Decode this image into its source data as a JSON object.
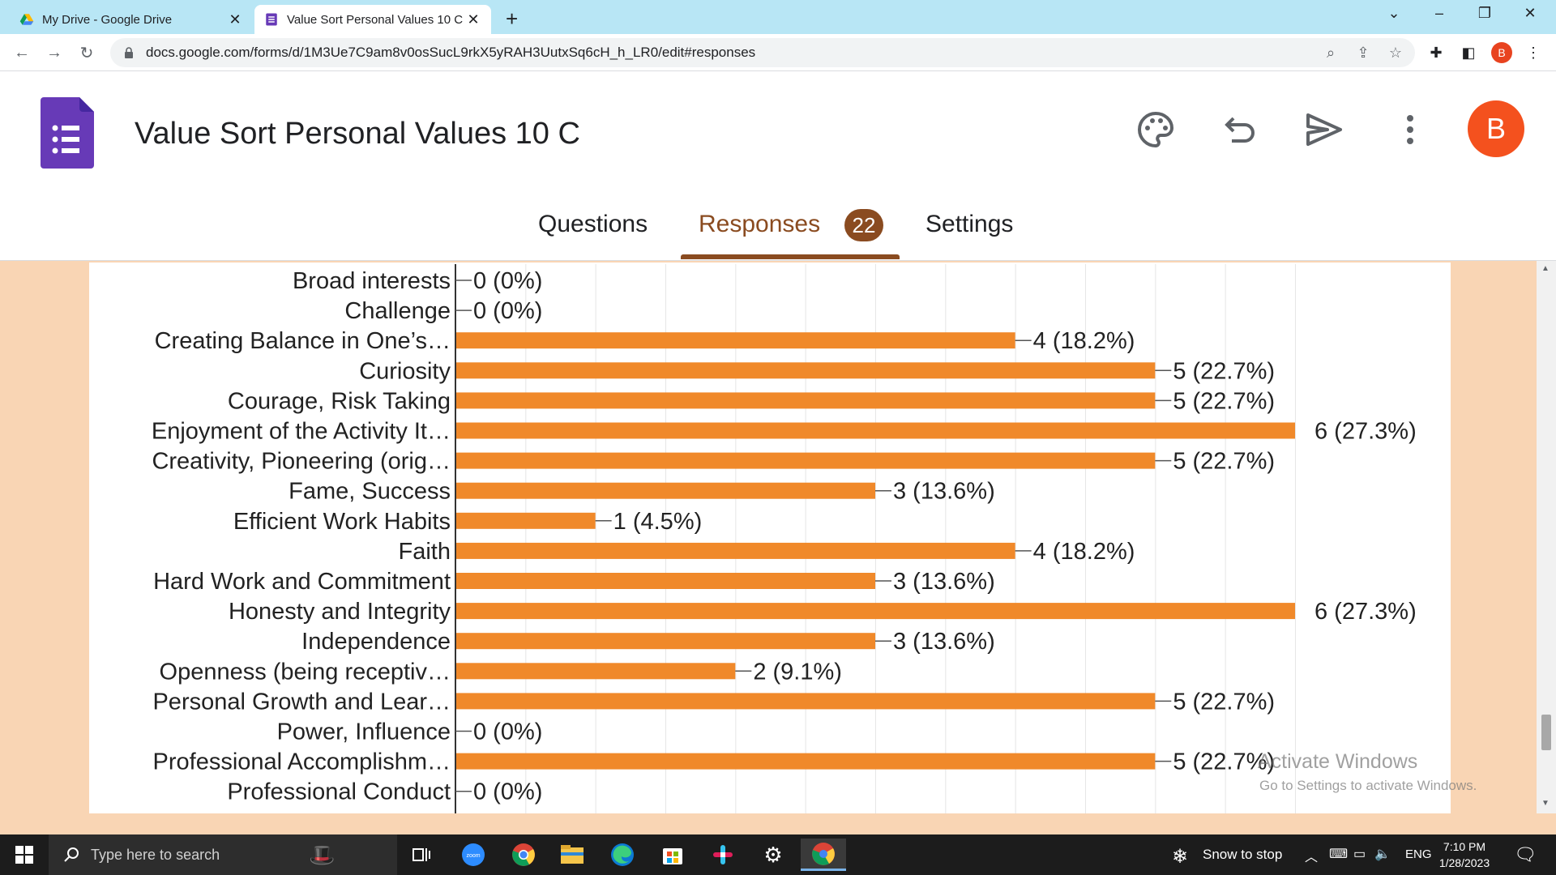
{
  "browser": {
    "tabs": [
      {
        "title": "My Drive - Google Drive",
        "active": false
      },
      {
        "title": "Value Sort Personal Values 10 C - ",
        "active": true
      }
    ],
    "url": "docs.google.com/forms/d/1M3Ue7C9am8v0osSucL9rkX5yRAH3UutxSq6cH_h_LR0/edit#responses",
    "profile_initial": "B"
  },
  "form": {
    "title": "Value Sort Personal Values 10 C",
    "avatar_initial": "B",
    "tabs": {
      "questions": "Questions",
      "responses": "Responses",
      "responses_count": "22",
      "settings": "Settings"
    }
  },
  "chart_data": {
    "type": "bar",
    "orientation": "horizontal",
    "bar_color": "#f0892a",
    "xlim": [
      0,
      6
    ],
    "categories": [
      "Broad interests",
      "Challenge",
      "Creating Balance in One’s…",
      "Curiosity",
      "Courage, Risk Taking",
      "Enjoyment of the Activity It…",
      "Creativity, Pioneering (orig…",
      "Fame, Success",
      "Efficient Work Habits",
      "Faith",
      "Hard Work and Commitment",
      "Honesty and Integrity",
      "Independence",
      "Openness (being receptiv…",
      "Personal Growth and Lear…",
      "Power, Influence",
      "Professional Accomplishm…",
      "Professional Conduct"
    ],
    "values": [
      0,
      0,
      4,
      5,
      5,
      6,
      5,
      3,
      1,
      4,
      3,
      6,
      3,
      2,
      5,
      0,
      5,
      0
    ],
    "labels": [
      "0 (0%)",
      "0 (0%)",
      "4 (18.2%)",
      "5 (22.7%)",
      "5 (22.7%)",
      "6 (27.3%)",
      "5 (22.7%)",
      "3 (13.6%)",
      "1 (4.5%)",
      "4 (18.2%)",
      "3 (13.6%)",
      "6 (27.3%)",
      "3 (13.6%)",
      "2 (9.1%)",
      "5 (22.7%)",
      "0 (0%)",
      "5 (22.7%)",
      "0 (0%)"
    ]
  },
  "watermark": {
    "title": "Activate Windows",
    "subtitle": "Go to Settings to activate Windows."
  },
  "taskbar": {
    "search_placeholder": "Type here to search",
    "weather": "Snow to stop",
    "language": "ENG",
    "time": "7:10 PM",
    "date": "1/28/2023"
  }
}
